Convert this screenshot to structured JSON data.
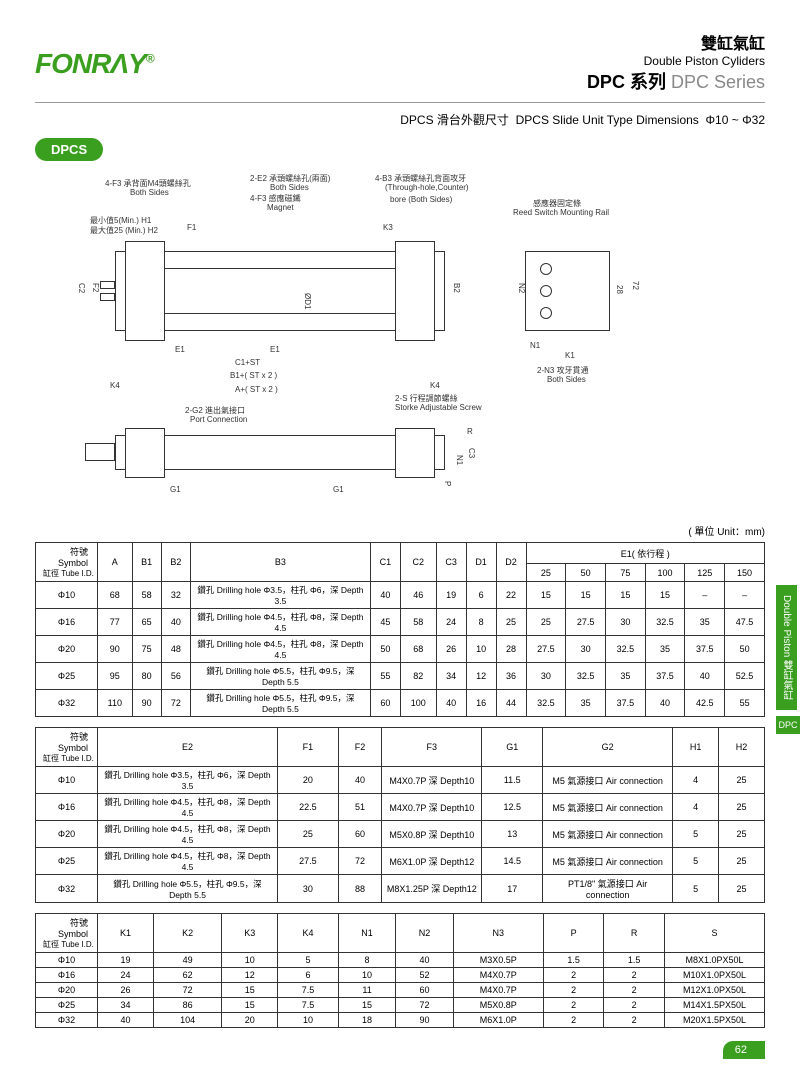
{
  "header": {
    "logo": "FONRΛY",
    "logo_mark": "®",
    "title_ch": "雙缸氣缸",
    "title_en": "Double Piston Cyliders",
    "series_ch": "DPC 系列",
    "series_en": "DPC Series",
    "subtitle_ch": "DPCS 滑台外觀尺寸",
    "subtitle_en": "DPCS Slide Unit Type Dimensions",
    "subtitle_range": "Φ10 ~ Φ32",
    "badge": "DPCS"
  },
  "diagram": {
    "labels": {
      "l1": "4-F3 承背面M4頭螺絲孔",
      "l1b": "Both Sides",
      "l2": "2-E2 承頭螺絲孔(兩面)",
      "l2b": "Both Sides",
      "l3": "4-F3 感應磁鐵",
      "l3b": "Magnet",
      "l4": "4-B3 承頭螺絲孔背面攻牙",
      "l4b": "(Through-hole,Counter)",
      "l4c": "bore (Both Sides)",
      "l5": "感應器固定條",
      "l5b": "Reed Switch Mounting Rail",
      "l6": "最小值5(Min.) H1",
      "l6b": "最大值25 (Min.) H2",
      "l7": "2-G2 進出氣接口",
      "l7b": "Port Connection",
      "l8": "2-S 行程調節螺絲",
      "l8b": "Storke Adjustable Screw",
      "l9": "2-N3 攻牙貫通",
      "l9b": "Both Sides",
      "dims": [
        "F1",
        "K3",
        "C2",
        "F2",
        "ØD1",
        "B2",
        "N2",
        "28",
        "72",
        "E1",
        "E1",
        "N1",
        "K1",
        "C1+ST",
        "B1+( ST x 2 )",
        "K4",
        "K4",
        "A+( ST x 2 )",
        "R",
        "N1",
        "C3",
        "G1",
        "G1",
        "P"
      ]
    }
  },
  "unit_label": "( 單位 Unit：mm)",
  "table1": {
    "sym": "符號 Symbol",
    "tube": "缸徑 Tube I.D.",
    "cols": [
      "A",
      "B1",
      "B2",
      "B3",
      "C1",
      "C2",
      "C3",
      "D1",
      "D2"
    ],
    "e1_header": "E1( 依行程 )",
    "e1_sub": [
      "25",
      "50",
      "75",
      "100",
      "125",
      "150"
    ],
    "rows": [
      {
        "id": "Φ10",
        "v": [
          "68",
          "58",
          "32",
          "鑽孔 Drilling hole Φ3.5，柱孔 Φ6，深 Depth 3.5",
          "40",
          "46",
          "19",
          "6",
          "22",
          "15",
          "15",
          "15",
          "15",
          "–",
          "–"
        ]
      },
      {
        "id": "Φ16",
        "v": [
          "77",
          "65",
          "40",
          "鑽孔 Drilling hole Φ4.5，柱孔 Φ8，深 Depth 4.5",
          "45",
          "58",
          "24",
          "8",
          "25",
          "25",
          "27.5",
          "30",
          "32.5",
          "35",
          "47.5"
        ]
      },
      {
        "id": "Φ20",
        "v": [
          "90",
          "75",
          "48",
          "鑽孔 Drilling hole Φ4.5，柱孔 Φ8，深 Depth 4.5",
          "50",
          "68",
          "26",
          "10",
          "28",
          "27.5",
          "30",
          "32.5",
          "35",
          "37.5",
          "50"
        ]
      },
      {
        "id": "Φ25",
        "v": [
          "95",
          "80",
          "56",
          "鑽孔 Drilling hole Φ5.5，柱孔 Φ9.5，深 Depth 5.5",
          "55",
          "82",
          "34",
          "12",
          "36",
          "30",
          "32.5",
          "35",
          "37.5",
          "40",
          "52.5"
        ]
      },
      {
        "id": "Φ32",
        "v": [
          "110",
          "90",
          "72",
          "鑽孔 Drilling hole Φ5.5，柱孔 Φ9.5，深 Depth 5.5",
          "60",
          "100",
          "40",
          "16",
          "44",
          "32.5",
          "35",
          "37.5",
          "40",
          "42.5",
          "55"
        ]
      }
    ]
  },
  "table2": {
    "sym": "符號 Symbol",
    "tube": "缸徑 Tube I.D.",
    "cols": [
      "E2",
      "F1",
      "F2",
      "F3",
      "G1",
      "G2",
      "H1",
      "H2"
    ],
    "rows": [
      {
        "id": "Φ10",
        "v": [
          "鑽孔 Drilling hole Φ3.5，柱孔 Φ6，深 Depth 3.5",
          "20",
          "40",
          "M4X0.7P 深 Depth10",
          "11.5",
          "M5 氣源接口 Air connection",
          "4",
          "25"
        ]
      },
      {
        "id": "Φ16",
        "v": [
          "鑽孔 Drilling hole Φ4.5，柱孔 Φ8，深 Depth 4.5",
          "22.5",
          "51",
          "M4X0.7P 深 Depth10",
          "12.5",
          "M5 氣源接口 Air connection",
          "4",
          "25"
        ]
      },
      {
        "id": "Φ20",
        "v": [
          "鑽孔 Drilling hole Φ4.5，柱孔 Φ8，深 Depth 4.5",
          "25",
          "60",
          "M5X0.8P 深 Depth10",
          "13",
          "M5 氣源接口 Air connection",
          "5",
          "25"
        ]
      },
      {
        "id": "Φ25",
        "v": [
          "鑽孔 Drilling hole Φ4.5，柱孔 Φ8，深 Depth 4.5",
          "27.5",
          "72",
          "M6X1.0P 深 Depth12",
          "14.5",
          "M5 氣源接口 Air connection",
          "5",
          "25"
        ]
      },
      {
        "id": "Φ32",
        "v": [
          "鑽孔 Drilling hole Φ5.5，柱孔 Φ9.5，深 Depth 5.5",
          "30",
          "88",
          "M8X1.25P 深 Depth12",
          "17",
          "PT1/8\" 氣源接口 Air connection",
          "5",
          "25"
        ]
      }
    ]
  },
  "table3": {
    "sym": "符號 Symbol",
    "tube": "缸徑 Tube I.D.",
    "cols": [
      "K1",
      "K2",
      "K3",
      "K4",
      "N1",
      "N2",
      "N3",
      "P",
      "R",
      "S"
    ],
    "rows": [
      {
        "id": "Φ10",
        "v": [
          "19",
          "49",
          "10",
          "5",
          "8",
          "40",
          "M3X0.5P",
          "1.5",
          "1.5",
          "M8X1.0PX50L"
        ]
      },
      {
        "id": "Φ16",
        "v": [
          "24",
          "62",
          "12",
          "6",
          "10",
          "52",
          "M4X0.7P",
          "2",
          "2",
          "M10X1.0PX50L"
        ]
      },
      {
        "id": "Φ20",
        "v": [
          "26",
          "72",
          "15",
          "7.5",
          "11",
          "60",
          "M4X0.7P",
          "2",
          "2",
          "M12X1.0PX50L"
        ]
      },
      {
        "id": "Φ25",
        "v": [
          "34",
          "86",
          "15",
          "7.5",
          "15",
          "72",
          "M5X0.8P",
          "2",
          "2",
          "M14X1.5PX50L"
        ]
      },
      {
        "id": "Φ32",
        "v": [
          "40",
          "104",
          "20",
          "10",
          "18",
          "90",
          "M6X1.0P",
          "2",
          "2",
          "M20X1.5PX50L"
        ]
      }
    ]
  },
  "side_tab": {
    "text_en": "Double Piston",
    "text_ch": "雙缸氣缸",
    "dpc": "DPC"
  },
  "page": "62",
  "colors": {
    "brand": "#3a9e1f",
    "text": "#000000",
    "border": "#333333"
  }
}
